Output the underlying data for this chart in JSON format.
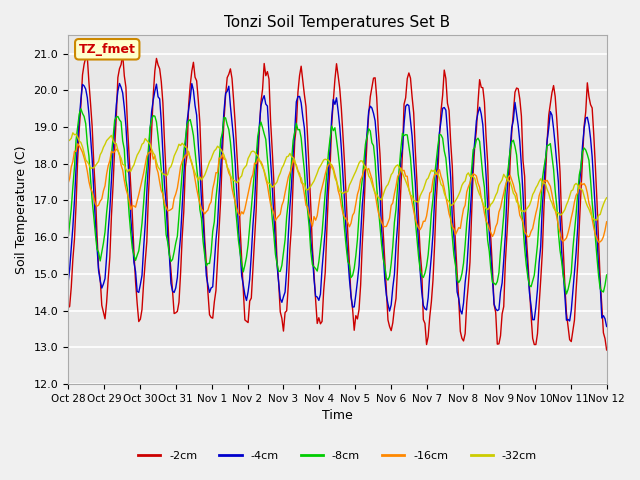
{
  "title": "Tonzi Soil Temperatures Set B",
  "xlabel": "Time",
  "ylabel": "Soil Temperature (C)",
  "ylim": [
    12.0,
    21.5
  ],
  "yticks": [
    12.0,
    13.0,
    14.0,
    15.0,
    16.0,
    17.0,
    18.0,
    19.0,
    20.0,
    21.0
  ],
  "x_tick_labels": [
    "Oct 28",
    "Oct 29",
    "Oct 30",
    "Oct 31",
    "Nov 1",
    "Nov 2",
    "Nov 3",
    "Nov 4",
    "Nov 5",
    "Nov 6",
    "Nov 7",
    "Nov 8",
    "Nov 9",
    "Nov 10",
    "Nov 11",
    "Nov 12"
  ],
  "legend_labels": [
    "-2cm",
    "-4cm",
    "-8cm",
    "-16cm",
    "-32cm"
  ],
  "legend_colors": [
    "#cc0000",
    "#0000cc",
    "#00cc00",
    "#ff8800",
    "#cccc00"
  ],
  "annotation_text": "TZ_fmet",
  "annotation_bg": "#ffffcc",
  "annotation_border": "#cc8800",
  "annotation_text_color": "#cc0000",
  "plot_bg_color": "#e8e8e8",
  "fig_bg_color": "#f0f0f0",
  "num_points": 336,
  "days": 15,
  "base_mean": 17.5,
  "amp_2cm": 3.5,
  "amp_4cm": 2.8,
  "amp_8cm": 2.0,
  "amp_16cm": 0.8,
  "amp_32cm": 0.45,
  "trend_slope": -0.07,
  "phase_4cm": 0.3,
  "phase_8cm": 0.7,
  "phase_16cm": 1.2,
  "phase_32cm": 2.0
}
